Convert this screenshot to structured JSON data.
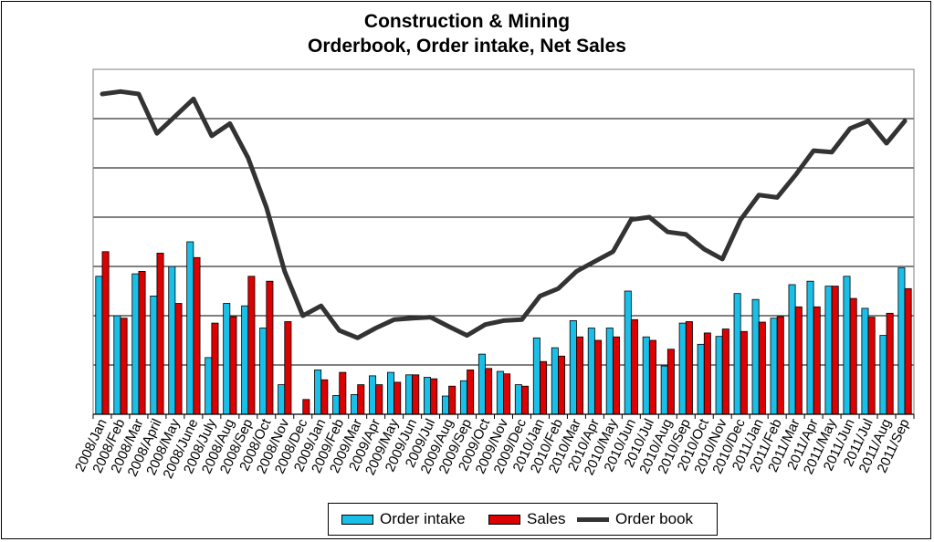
{
  "chart_data": {
    "type": "bar",
    "title": "Construction & Mining",
    "subtitle": "Orderbook, Order intake, Net Sales",
    "xlabel": "",
    "ylabel": "",
    "ylim": [
      0,
      7
    ],
    "y_ticks_shown": false,
    "grid": true,
    "legend_position": "bottom",
    "categories": [
      "2008/Jan",
      "2008/Feb",
      "2008/Mar",
      "2008/April",
      "2008/May",
      "2008/June",
      "2008/July",
      "2008/Aug",
      "2008/Sep",
      "2008/Oct",
      "2008/Nov",
      "2008/Dec",
      "2009/Jan",
      "2009/Feb",
      "2009/Mar",
      "2009/Apr",
      "2009/May",
      "2009/Jun",
      "2009/Jul",
      "2009/Aug",
      "2009/Sep",
      "2009/Oct",
      "2009/Nov",
      "2009/Dec",
      "2010/Jan",
      "2010/Feb",
      "2010/Mar",
      "2010/Apr",
      "2010/May",
      "2010/Jun",
      "2010/Jul",
      "2010/Aug",
      "2010/Sep",
      "2010/Oct",
      "2010/Nov",
      "2010/Dec",
      "2011/Jan",
      "2011/Feb",
      "2011/Mar",
      "2011/Apr",
      "2011/May",
      "2011/Jun",
      "2011/Jul",
      "2011/Aug",
      "2011/Sep"
    ],
    "series": [
      {
        "name": "Order intake",
        "kind": "bar",
        "color": "#1ABFE8",
        "values": [
          2.8,
          2.0,
          2.85,
          2.4,
          3.0,
          3.5,
          1.15,
          2.25,
          2.2,
          1.75,
          0.6,
          0,
          0.9,
          0.38,
          0.4,
          0.78,
          0.85,
          0.8,
          0.75,
          0.37,
          0.68,
          1.22,
          0.87,
          0.6,
          1.55,
          1.35,
          1.9,
          1.75,
          1.75,
          2.5,
          1.57,
          0.98,
          1.85,
          1.42,
          1.58,
          2.45,
          2.33,
          1.95,
          2.63,
          2.7,
          2.6,
          2.8,
          2.15,
          1.6,
          2.97
        ]
      },
      {
        "name": "Sales",
        "kind": "bar",
        "color": "#DD0000",
        "values": [
          3.3,
          1.95,
          2.9,
          3.27,
          2.25,
          3.18,
          1.85,
          1.98,
          2.8,
          2.7,
          1.88,
          0.3,
          0.7,
          0.85,
          0.6,
          0.6,
          0.65,
          0.8,
          0.72,
          0.57,
          0.9,
          0.93,
          0.82,
          0.57,
          1.07,
          1.18,
          1.57,
          1.5,
          1.57,
          1.92,
          1.5,
          1.32,
          1.88,
          1.65,
          1.73,
          1.68,
          1.87,
          1.98,
          2.18,
          2.18,
          2.6,
          2.35,
          1.97,
          2.05,
          2.55
        ]
      },
      {
        "name": "Order book",
        "kind": "line",
        "color": "#333333",
        "values": [
          6.5,
          6.55,
          6.5,
          5.7,
          6.05,
          6.4,
          5.65,
          5.9,
          5.2,
          4.2,
          2.9,
          2.0,
          2.2,
          1.7,
          1.55,
          1.75,
          1.92,
          1.95,
          1.97,
          1.78,
          1.6,
          1.82,
          1.9,
          1.92,
          2.4,
          2.55,
          2.9,
          3.1,
          3.3,
          3.95,
          4.0,
          3.7,
          3.65,
          3.35,
          3.15,
          3.95,
          4.45,
          4.4,
          4.85,
          5.35,
          5.32,
          5.8,
          5.95,
          5.5,
          5.95
        ]
      }
    ]
  }
}
